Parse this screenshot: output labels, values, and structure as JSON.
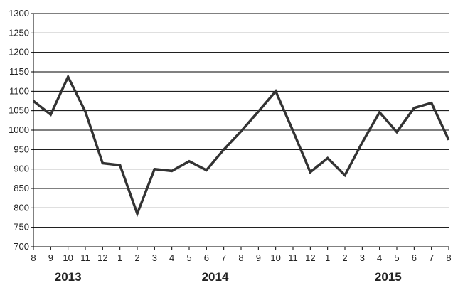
{
  "chart_data": {
    "type": "line",
    "title": "",
    "xlabel": "",
    "ylabel": "",
    "ylim": [
      700,
      1300
    ],
    "yticks": [
      700,
      750,
      800,
      850,
      900,
      950,
      1000,
      1050,
      1100,
      1150,
      1200,
      1250,
      1300
    ],
    "grid": true,
    "legend": "none",
    "line_color": "#333333",
    "categories": [
      "8",
      "9",
      "10",
      "11",
      "12",
      "1",
      "2",
      "3",
      "4",
      "5",
      "6",
      "7",
      "8",
      "9",
      "10",
      "11",
      "12",
      "1",
      "2",
      "3",
      "4",
      "5",
      "6",
      "7",
      "8"
    ],
    "year_labels": [
      {
        "label": "2013",
        "at_index": 2
      },
      {
        "label": "2014",
        "at_index": 10.5
      },
      {
        "label": "2015",
        "at_index": 20.5
      }
    ],
    "series": [
      {
        "values": [
          1075,
          1040,
          1137,
          1048,
          915,
          910,
          785,
          900,
          895,
          920,
          897,
          950,
          997,
          1048,
          1100,
          998,
          892,
          928,
          884,
          968,
          1046,
          995,
          1057,
          1070,
          975
        ]
      }
    ]
  }
}
